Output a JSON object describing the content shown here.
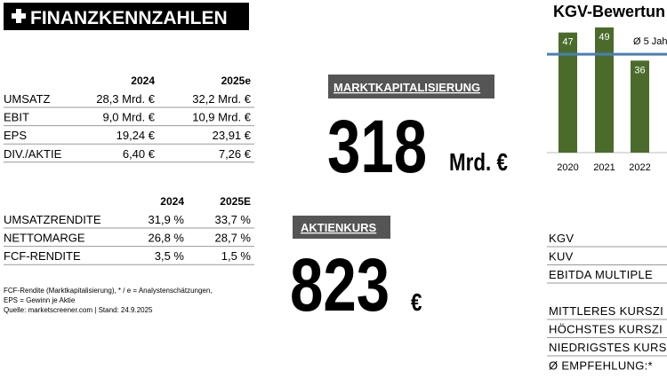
{
  "header": {
    "title": "FINANZKENNZAHLEN"
  },
  "table1": {
    "columns": [
      "2024",
      "2025e"
    ],
    "rows": [
      [
        "UMSATZ",
        "28,3 Mrd. €",
        "32,2 Mrd. €"
      ],
      [
        "EBIT",
        "9,0 Mrd. €",
        "10,9 Mrd. €"
      ],
      [
        "EPS",
        "19,24 €",
        "23,91 €"
      ],
      [
        "DIV./AKTIE",
        "6,40 €",
        "7,26 €"
      ]
    ]
  },
  "table2": {
    "columns": [
      "2024",
      "2025E"
    ],
    "rows": [
      [
        "UMSATZRENDITE",
        "31,9 %",
        "33,7 %"
      ],
      [
        "NETTOMARGE",
        "26,8 %",
        "28,7 %"
      ],
      [
        "FCF-RENDITE",
        "3,5 %",
        "1,5 %"
      ]
    ]
  },
  "footnotes": [
    "FCF-Rendite (Marktkapitalisierung), * / e = Analystenschätzungen,",
    "EPS = Gewinn je Aktie",
    "Quelle: marketscreener.com | Stand: 24.9.2025"
  ],
  "market_cap": {
    "label": "MARKTKAPITALISIERUNG",
    "value": "318",
    "unit": "Mrd. €"
  },
  "share_price": {
    "label": "AKTIENKURS",
    "value": "823",
    "unit": "€"
  },
  "kgv_chart": {
    "type": "bar",
    "title": "KGV-Bewertun",
    "categories": [
      "2020",
      "2021",
      "2022"
    ],
    "values": [
      47,
      49,
      36
    ],
    "color": "#4b6b2b",
    "average": 38.5,
    "average_label": "Ø 5 Jah",
    "average_color": "#4a7fb5"
  },
  "valuation_table": {
    "rows": [
      "KGV",
      "KUV",
      "EBITDA MULTIPLE"
    ]
  },
  "targets_table": {
    "rows": [
      "MITTLERES KURSZI",
      "HÖCHSTES KURSZI",
      "NIEDRIGSTES KURS",
      "Ø EMPFEHLUNG:*"
    ]
  }
}
